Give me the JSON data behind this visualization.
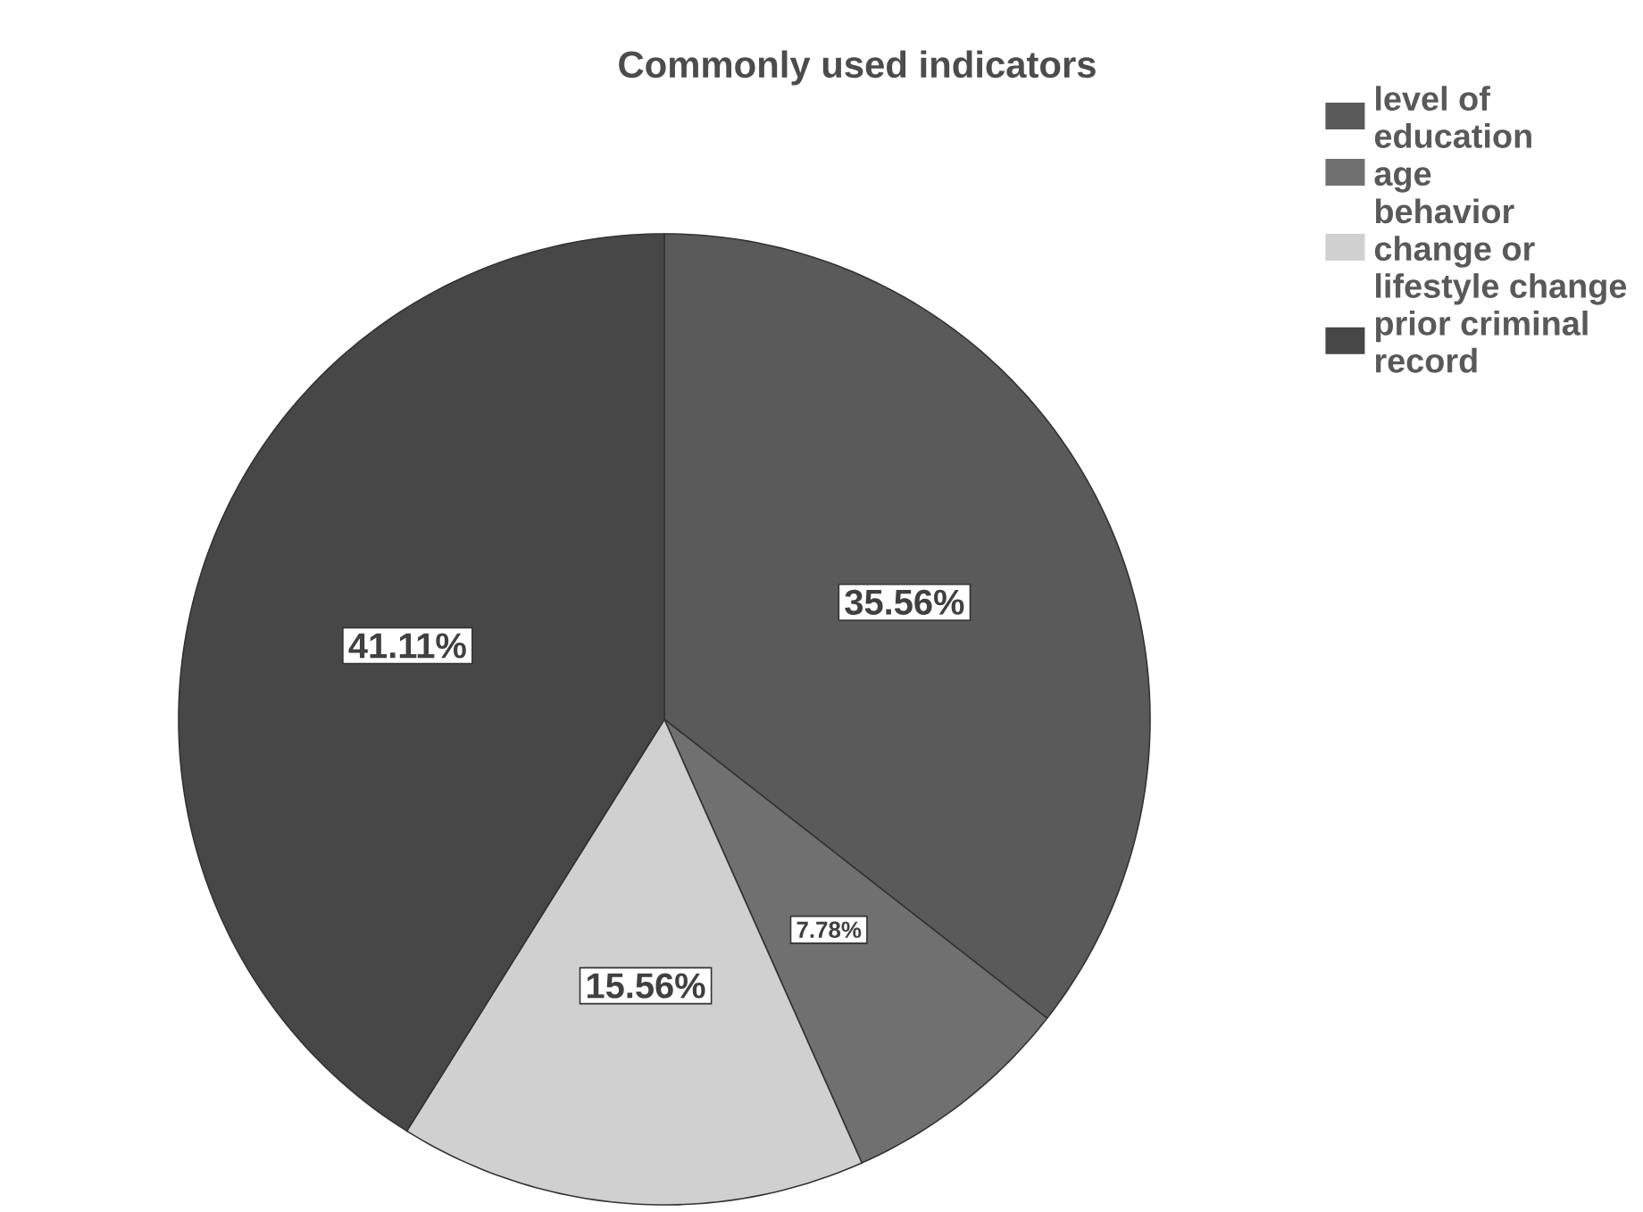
{
  "chart_data": {
    "type": "pie",
    "title": "Commonly used indicators",
    "categories": [
      "level of education",
      "age",
      "behavior change or lifestyle change",
      "prior criminal record"
    ],
    "values": [
      35.56,
      7.78,
      15.56,
      41.11
    ],
    "colors": [
      "#5a5a5a",
      "#707070",
      "#d0d0d0",
      "#474747"
    ],
    "value_labels": [
      "35.56%",
      "7.78%",
      "15.56%",
      "41.11%"
    ],
    "legend": "right"
  }
}
